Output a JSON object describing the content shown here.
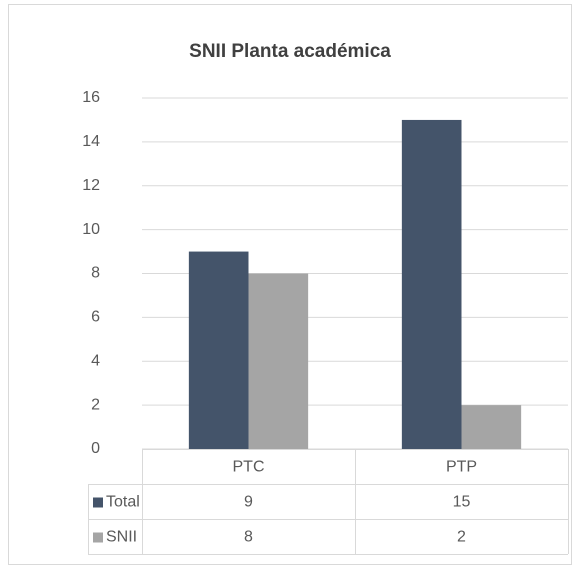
{
  "chart_data": {
    "type": "bar",
    "title": "SNII Planta académica",
    "categories": [
      "PTC",
      "PTP"
    ],
    "series": [
      {
        "name": "Total",
        "color": "#44546a",
        "values": [
          9,
          15
        ]
      },
      {
        "name": "SNII",
        "color": "#a5a5a5",
        "values": [
          8,
          2
        ]
      }
    ],
    "ylim": [
      0,
      16
    ],
    "yticks": [
      0,
      2,
      4,
      6,
      8,
      10,
      12,
      14,
      16
    ],
    "grid": true
  }
}
